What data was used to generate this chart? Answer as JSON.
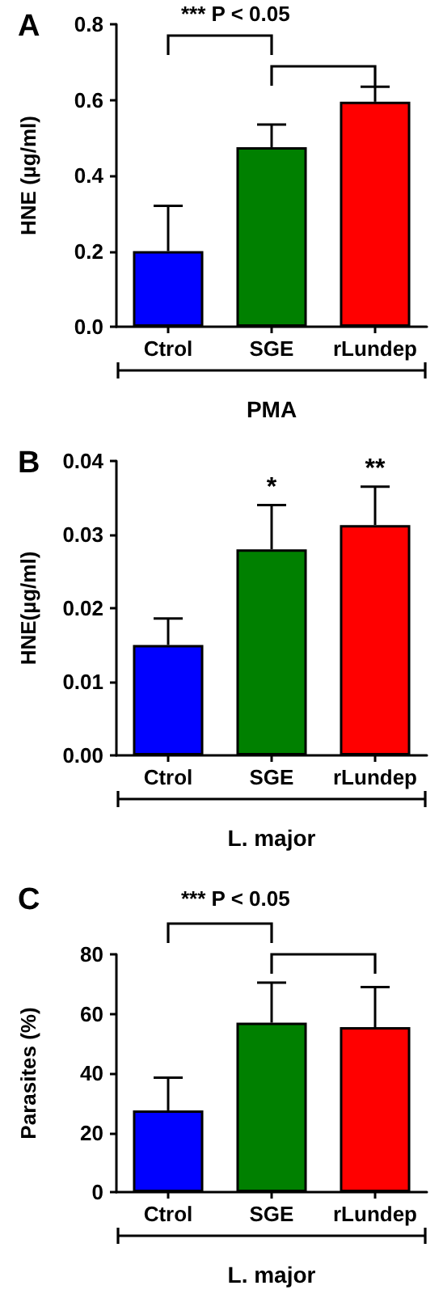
{
  "chart_data": [
    {
      "type": "bar",
      "title": "A",
      "ylabel": "HNE (µg/ml)",
      "xlabel": "PMA",
      "categories": [
        "Ctrol",
        "SGE",
        "rLundep"
      ],
      "values": [
        0.2,
        0.475,
        0.595
      ],
      "colors": [
        "#0000ff",
        "#008000",
        "#ff0000"
      ],
      "errors": [
        [
          0.2,
          0.32
        ],
        [
          0.475,
          0.535
        ],
        [
          0.595,
          0.635
        ]
      ],
      "ylim": [
        0,
        0.8
      ],
      "yticks": [
        {
          "value": 0,
          "label": "0.0"
        },
        {
          "value": 0.2,
          "label": "0.2"
        },
        {
          "value": 0.4,
          "label": "0.4"
        },
        {
          "value": 0.6,
          "label": "0.6"
        },
        {
          "value": 0.8,
          "label": "0.8"
        }
      ],
      "annotations": [
        "*** P < 0.05"
      ],
      "grid": false
    },
    {
      "type": "bar",
      "title": "B",
      "ylabel": "HNE(µg/ml)",
      "xlabel": "L. major",
      "categories": [
        "Ctrol",
        "SGE",
        "rLundep"
      ],
      "values": [
        0.015,
        0.028,
        0.0313
      ],
      "colors": [
        "#0000ff",
        "#008000",
        "#ff0000"
      ],
      "errors": [
        [
          0.015,
          0.0186
        ],
        [
          0.028,
          0.034
        ],
        [
          0.0313,
          0.0365
        ]
      ],
      "ylim": [
        0,
        0.04
      ],
      "yticks": [
        {
          "value": 0,
          "label": "0.00"
        },
        {
          "value": 0.01,
          "label": "0.01"
        },
        {
          "value": 0.02,
          "label": "0.02"
        },
        {
          "value": 0.03,
          "label": "0.03"
        },
        {
          "value": 0.04,
          "label": "0.04"
        }
      ],
      "annotations": [
        {
          "text": "*",
          "x": "SGE",
          "y": 0.034
        },
        {
          "text": "**",
          "x": "rLundep",
          "y": 0.0365
        }
      ],
      "grid": false
    },
    {
      "type": "bar",
      "title": "C",
      "ylabel": "Parasites (%)",
      "xlabel": "L. major",
      "categories": [
        "Ctrol",
        "SGE",
        "rLundep"
      ],
      "values": [
        27.5,
        57,
        55.5
      ],
      "colors": [
        "#0000ff",
        "#008000",
        "#ff0000"
      ],
      "errors": [
        [
          27.5,
          38.5
        ],
        [
          57,
          70.5
        ],
        [
          55.5,
          69
        ]
      ],
      "ylim": [
        0,
        80
      ],
      "yticks": [
        0,
        20,
        40,
        60,
        80
      ],
      "annotations": [
        "*** P < 0.05"
      ],
      "grid": false
    }
  ]
}
